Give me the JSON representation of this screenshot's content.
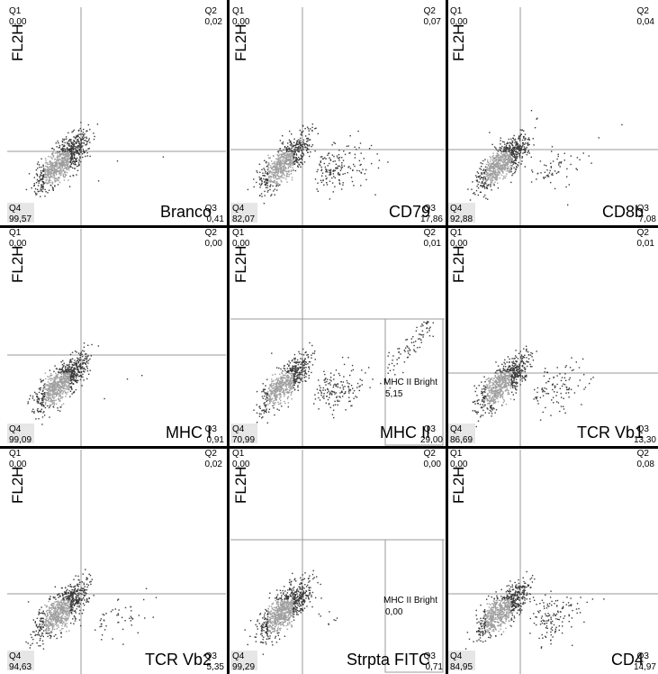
{
  "chart_data": [
    {
      "type": "scatter",
      "ylabel": "FL2H",
      "marker": "Branco",
      "quadrants": {
        "Q1": "0,00",
        "Q2": "0,02",
        "Q3": "0,41",
        "Q4": "99,57"
      }
    },
    {
      "type": "scatter",
      "ylabel": "FL2H",
      "marker": "CD79",
      "quadrants": {
        "Q1": "0,00",
        "Q2": "0,07",
        "Q3": "17,86",
        "Q4": "82,07"
      }
    },
    {
      "type": "scatter",
      "ylabel": "FL2H",
      "marker": "CD8b",
      "quadrants": {
        "Q1": "0,00",
        "Q2": "0,04",
        "Q3": "7,08",
        "Q4": "92,88"
      }
    },
    {
      "type": "scatter",
      "ylabel": "FL2H",
      "marker": "MHC I",
      "quadrants": {
        "Q1": "0,00",
        "Q2": "0,00",
        "Q3": "0,91",
        "Q4": "99,09"
      }
    },
    {
      "type": "scatter",
      "ylabel": "FL2H",
      "marker": "MHC II",
      "quadrants": {
        "Q1": "0,00",
        "Q2": "0,01",
        "Q3": "29,00",
        "Q4": "70,99"
      },
      "gate": {
        "name": "MHC II Bright",
        "value": "5,15"
      }
    },
    {
      "type": "scatter",
      "ylabel": "FL2H",
      "marker": "TCR Vb1",
      "quadrants": {
        "Q1": "0,00",
        "Q2": "0,01",
        "Q3": "13,30",
        "Q4": "86,69"
      }
    },
    {
      "type": "scatter",
      "ylabel": "FL2H",
      "marker": "TCR Vb2",
      "quadrants": {
        "Q1": "0,00",
        "Q2": "0,02",
        "Q3": "5,35",
        "Q4": "94,63"
      }
    },
    {
      "type": "scatter",
      "ylabel": "FL2H",
      "marker": "Strpta FITC",
      "quadrants": {
        "Q1": "0,00",
        "Q2": "0,00",
        "Q3": "0,71",
        "Q4": "99,29"
      },
      "gate": {
        "name": "MHC II Bright",
        "value": "0,00"
      }
    },
    {
      "type": "scatter",
      "ylabel": "FL2H",
      "marker": "CD4",
      "quadrants": {
        "Q1": "0,00",
        "Q2": "0,08",
        "Q3": "14,97",
        "Q4": "84,95"
      }
    }
  ]
}
